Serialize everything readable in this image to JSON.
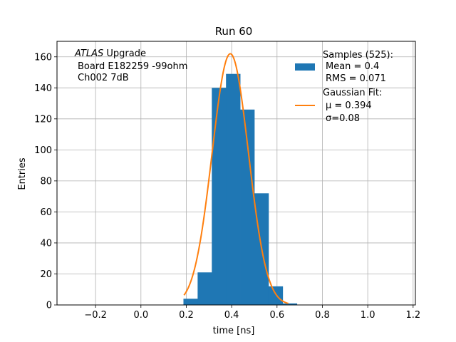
{
  "chart_data": {
    "type": "bar",
    "title": "Run 60",
    "xlabel": "time [ns]",
    "ylabel": "Entries",
    "xlim": [
      -0.37,
      1.21
    ],
    "ylim": [
      0,
      170
    ],
    "xticks": [
      -0.2,
      0.0,
      0.2,
      0.4,
      0.6,
      0.8,
      1.0,
      1.2
    ],
    "xtick_labels": [
      "−0.2",
      "0.0",
      "0.2",
      "0.4",
      "0.6",
      "0.8",
      "1.0",
      "1.2"
    ],
    "yticks": [
      0,
      20,
      40,
      60,
      80,
      100,
      120,
      140,
      160
    ],
    "ytick_labels": [
      "0",
      "20",
      "40",
      "60",
      "80",
      "100",
      "120",
      "140",
      "160"
    ],
    "grid": true,
    "legend_position": "upper-right",
    "annotation": [
      "ATLAS Upgrade",
      "Board E182259 -99ohm",
      "Ch002 7dB"
    ],
    "series": [
      {
        "name": "Samples (525):",
        "kind": "histogram",
        "color": "#1f77b4",
        "legend_lines": [
          "Samples (525):",
          "Mean = 0.4",
          "RMS = 0.071"
        ],
        "bins": [
          {
            "x0": 0.1875,
            "x1": 0.25,
            "count": 4
          },
          {
            "x0": 0.25,
            "x1": 0.3125,
            "count": 21
          },
          {
            "x0": 0.3125,
            "x1": 0.375,
            "count": 140
          },
          {
            "x0": 0.375,
            "x1": 0.4375,
            "count": 149
          },
          {
            "x0": 0.4375,
            "x1": 0.5,
            "count": 126
          },
          {
            "x0": 0.5,
            "x1": 0.5625,
            "count": 72
          },
          {
            "x0": 0.5625,
            "x1": 0.625,
            "count": 12
          },
          {
            "x0": 0.625,
            "x1": 0.6875,
            "count": 1
          }
        ]
      },
      {
        "name": "Gaussian Fit:",
        "kind": "gaussian",
        "color": "#ff7f0e",
        "legend_lines": [
          "Gaussian Fit:",
          "μ = 0.394",
          "σ=0.08"
        ],
        "amplitude": 162,
        "mu": 0.394,
        "sigma": 0.08,
        "x_range": [
          0.19,
          0.65
        ]
      }
    ]
  }
}
